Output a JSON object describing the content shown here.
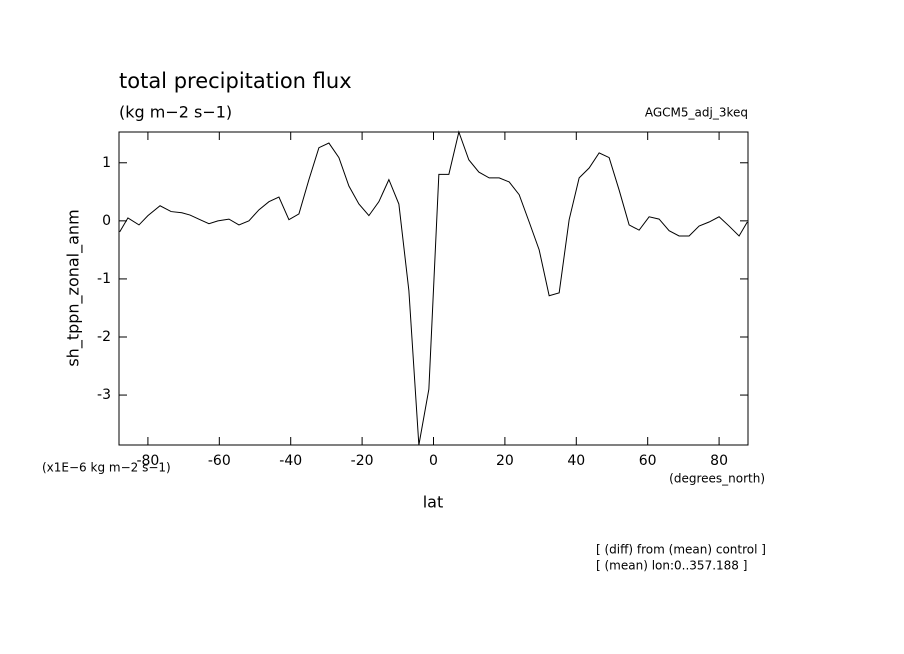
{
  "chart_data": {
    "type": "line",
    "title": "total precipitation flux",
    "subtitle": "(kg m−2 s−1)",
    "experiment": "AGCM5_adj_3keq",
    "y_label": "sh_tppn_zonal_anm",
    "y_units": "(x1E−6 kg m−2 s−1)",
    "x_label": "lat",
    "x_units": "(degrees_north)",
    "notes": [
      "[ (diff) from (mean) control ]",
      "[ (mean) lon:0..357.188 ]"
    ],
    "color": "#000000",
    "xlim": [
      -88.1,
      88.1
    ],
    "ylim": [
      -3.86,
      1.53
    ],
    "xticks": [
      -80,
      -60,
      -40,
      -20,
      0,
      20,
      40,
      60,
      80
    ],
    "yticks": [
      -3,
      -2,
      -1,
      0,
      1
    ],
    "x": [
      -87.9,
      -85.6,
      -82.5,
      -80.0,
      -76.6,
      -73.5,
      -70.5,
      -68.2,
      -65.4,
      -62.9,
      -60.4,
      -57.3,
      -54.5,
      -51.7,
      -48.9,
      -46.1,
      -43.3,
      -40.5,
      -37.7,
      -34.9,
      -32.1,
      -29.3,
      -26.5,
      -23.7,
      -20.9,
      -18.1,
      -15.3,
      -12.5,
      -9.7,
      -6.9,
      -4.1,
      -1.3,
      1.5,
      4.3,
      7.1,
      9.9,
      12.7,
      15.6,
      18.4,
      21.2,
      24.0,
      26.8,
      29.6,
      32.4,
      35.2,
      38.0,
      40.8,
      43.6,
      46.4,
      49.2,
      52.0,
      54.8,
      57.6,
      60.4,
      63.2,
      66.0,
      68.8,
      71.6,
      74.4,
      77.2,
      80.0,
      82.8,
      85.6,
      87.9
    ],
    "values": [
      -0.19,
      0.05,
      -0.07,
      0.09,
      0.26,
      0.16,
      0.14,
      0.1,
      0.02,
      -0.05,
      0,
      0.03,
      -0.07,
      0,
      0.19,
      0.33,
      0.41,
      0.02,
      0.12,
      0.71,
      1.26,
      1.34,
      1.09,
      0.6,
      0.29,
      0.09,
      0.33,
      0.71,
      0.29,
      -1.2,
      -3.86,
      -2.9,
      0.8,
      0.8,
      1.53,
      1.05,
      0.84,
      0.74,
      0.74,
      0.67,
      0.45,
      -0.02,
      -0.5,
      -1.29,
      -1.24,
      0.02,
      0.74,
      0.91,
      1.17,
      1.09,
      0.53,
      -0.07,
      -0.16,
      0.07,
      0.03,
      -0.17,
      -0.26,
      -0.26,
      -0.09,
      -0.02,
      0.07,
      -0.09,
      -0.26,
      -0.02
    ]
  }
}
